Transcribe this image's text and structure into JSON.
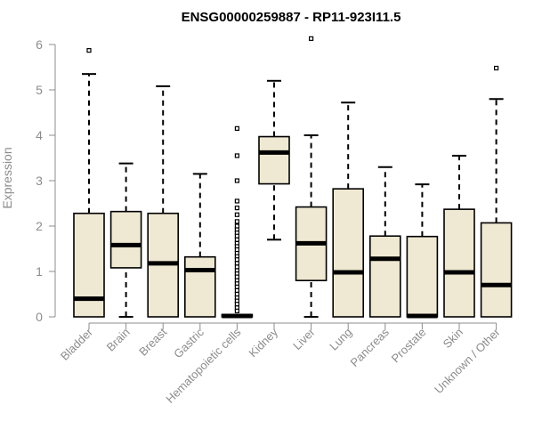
{
  "chart_data": {
    "type": "boxplot",
    "title": "ENSG00000259887 - RP11-923I11.5",
    "xlabel": "",
    "ylabel": "Expression",
    "ylim": [
      0,
      6.2
    ],
    "yticks": [
      0,
      1,
      2,
      3,
      4,
      5,
      6
    ],
    "grid": false,
    "colors": {
      "box_fill": "#efe8d2",
      "stroke": "#000000",
      "axis_text": "#8c8c8c"
    },
    "categories": [
      "Bladder",
      "Brain",
      "Breast",
      "Gastric",
      "Hematopoietic cells",
      "Kidney",
      "Liver",
      "Lung",
      "Pancreas",
      "Prostate",
      "Skin",
      "Unknown / Other"
    ],
    "boxes": [
      {
        "category": "Bladder",
        "whisker_low": 0,
        "q1": 0,
        "median": 0.4,
        "q3": 2.28,
        "whisker_high": 5.35,
        "outliers": [
          5.87
        ]
      },
      {
        "category": "Brain",
        "whisker_low": 0,
        "q1": 1.08,
        "median": 1.58,
        "q3": 2.32,
        "whisker_high": 3.38,
        "outliers": []
      },
      {
        "category": "Breast",
        "whisker_low": 0,
        "q1": 0,
        "median": 1.18,
        "q3": 2.28,
        "whisker_high": 5.08,
        "outliers": []
      },
      {
        "category": "Gastric",
        "whisker_low": 0,
        "q1": 0,
        "median": 1.03,
        "q3": 1.32,
        "whisker_high": 3.15,
        "outliers": []
      },
      {
        "category": "Hematopoietic cells",
        "whisker_low": 0,
        "q1": 0,
        "median": 0.02,
        "q3": 0.05,
        "whisker_high": 0.05,
        "outliers": [
          4.15,
          3.55,
          3.0,
          2.55,
          2.4,
          2.25,
          2.1,
          2.0,
          1.92,
          1.85,
          1.78,
          1.7,
          1.62,
          1.55,
          1.48,
          1.4,
          1.33,
          1.26,
          1.18,
          1.1,
          1.02,
          0.95,
          0.88,
          0.8,
          0.73,
          0.66,
          0.58,
          0.5,
          0.42,
          0.35,
          0.28,
          0.2,
          0.13
        ]
      },
      {
        "category": "Kidney",
        "whisker_low": 1.7,
        "q1": 2.93,
        "median": 3.62,
        "q3": 3.97,
        "whisker_high": 5.2,
        "outliers": []
      },
      {
        "category": "Liver",
        "whisker_low": 0,
        "q1": 0.8,
        "median": 1.62,
        "q3": 2.42,
        "whisker_high": 4.0,
        "outliers": [
          6.13
        ]
      },
      {
        "category": "Lung",
        "whisker_low": 0,
        "q1": 0,
        "median": 0.98,
        "q3": 2.82,
        "whisker_high": 4.72,
        "outliers": []
      },
      {
        "category": "Pancreas",
        "whisker_low": 0,
        "q1": 0,
        "median": 1.28,
        "q3": 1.78,
        "whisker_high": 3.3,
        "outliers": []
      },
      {
        "category": "Prostate",
        "whisker_low": 0,
        "q1": 0,
        "median": 0.02,
        "q3": 1.77,
        "whisker_high": 2.92,
        "outliers": []
      },
      {
        "category": "Skin",
        "whisker_low": 0,
        "q1": 0,
        "median": 0.98,
        "q3": 2.37,
        "whisker_high": 3.55,
        "outliers": []
      },
      {
        "category": "Unknown / Other",
        "whisker_low": 0,
        "q1": 0,
        "median": 0.7,
        "q3": 2.07,
        "whisker_high": 4.8,
        "outliers": [
          5.48
        ]
      }
    ]
  }
}
